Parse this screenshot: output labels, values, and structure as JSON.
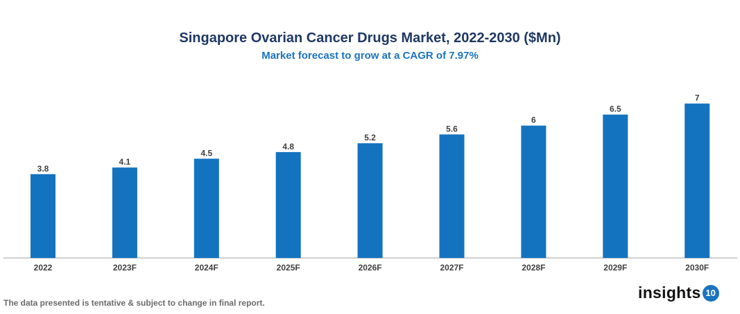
{
  "chart_data": {
    "type": "bar",
    "title": "Singapore Ovarian Cancer Drugs Market, 2022-2030 ($Mn)",
    "subtitle": "Market forecast to grow at a CAGR of 7.97%",
    "categories": [
      "2022",
      "2023F",
      "2024F",
      "2025F",
      "2026F",
      "2027F",
      "2028F",
      "2029F",
      "2030F"
    ],
    "values": [
      3.8,
      4.1,
      4.5,
      4.8,
      5.2,
      5.6,
      6,
      6.5,
      7
    ],
    "data_labels": [
      "3.8",
      "4.1",
      "4.5",
      "4.8",
      "5.2",
      "5.6",
      "6",
      "6.5",
      "7"
    ],
    "xlabel": "",
    "ylabel": "",
    "ylim": [
      0,
      7.5
    ],
    "grid": false,
    "bar_color": "#1473bf"
  },
  "footer": {
    "note": "The data presented is tentative & subject to change in final report.",
    "logo_text": "insights",
    "logo_badge": "10"
  }
}
